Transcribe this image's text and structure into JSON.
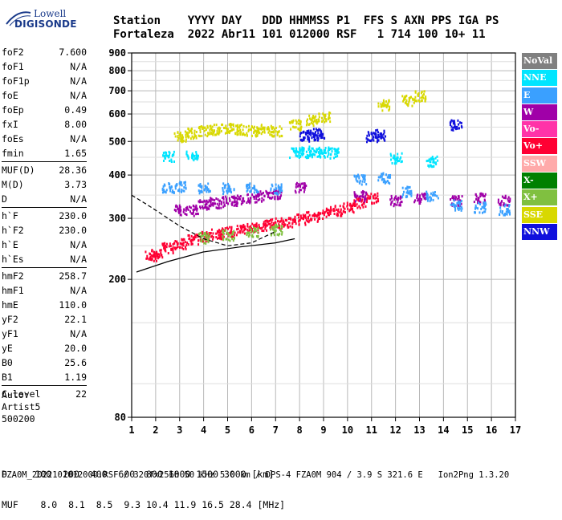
{
  "logo": {
    "line1": "Lowell",
    "line2": "DIGISONDE"
  },
  "header": {
    "labels": "Station    YYYY DAY   DDD HHMMSS P1  FFS S AXN PPS IGA PS",
    "values": "Fortaleza  2022 Abr11 101 012000 RSF   1 714 100 10+ 11"
  },
  "params": [
    {
      "name": "foF2",
      "value": "7.600"
    },
    {
      "name": "foF1",
      "value": "N/A"
    },
    {
      "name": "foF1p",
      "value": "N/A"
    },
    {
      "name": "foE",
      "value": "N/A"
    },
    {
      "name": "foEp",
      "value": "0.49"
    },
    {
      "name": "fxI",
      "value": "8.00"
    },
    {
      "name": "foEs",
      "value": "N/A"
    },
    {
      "name": "fmin",
      "value": "1.65"
    },
    {
      "name": "MUF(D)",
      "value": "28.36"
    },
    {
      "name": "M(D)",
      "value": "3.73"
    },
    {
      "name": "D",
      "value": "N/A"
    },
    {
      "name": "h`F",
      "value": "230.0"
    },
    {
      "name": "h`F2",
      "value": "230.0"
    },
    {
      "name": "h`E",
      "value": "N/A"
    },
    {
      "name": "h`Es",
      "value": "N/A"
    },
    {
      "name": "hmF2",
      "value": "258.7"
    },
    {
      "name": "hmF1",
      "value": "N/A"
    },
    {
      "name": "hmE",
      "value": "110.0"
    },
    {
      "name": "yF2",
      "value": "22.1"
    },
    {
      "name": "yF1",
      "value": "N/A"
    },
    {
      "name": "yE",
      "value": "20.0"
    },
    {
      "name": "B0",
      "value": "25.6"
    },
    {
      "name": "B1",
      "value": "1.19"
    },
    {
      "name": "C-level",
      "value": "22"
    }
  ],
  "auto": {
    "line1": "Auto:",
    "line2": "Artist5",
    "line3": "500200"
  },
  "legend": [
    {
      "label": "NoVal",
      "color": "#808080"
    },
    {
      "label": "NNE",
      "color": "#00e5ff"
    },
    {
      "label": "E",
      "color": "#3aa0ff"
    },
    {
      "label": "W",
      "color": "#a000a8"
    },
    {
      "label": "Vo-",
      "color": "#ff33a8"
    },
    {
      "label": "Vo+",
      "color": "#ff0033"
    },
    {
      "label": "SSW",
      "color": "#ffaaaa"
    },
    {
      "label": "X-",
      "color": "#008000"
    },
    {
      "label": "X+",
      "color": "#80c040"
    },
    {
      "label": "SSE",
      "color": "#d8d800"
    },
    {
      "label": "NNW",
      "color": "#1010dd"
    }
  ],
  "bottom": {
    "line1": "D     100  200  400  600  800 1000 1500 3000 [km]",
    "line2": "MUF    8.0  8.1  8.5  9.3 10.4 11.9 16.5 28.4 [MHz]"
  },
  "footer": "FZA0M_2022101012000.RSF / 320fx256h 50 kHz 5.0 km / DPS-4 FZA0M 904 / 3.9 S 321.6 E   Ion2Png 1.3.20",
  "chart_data": {
    "type": "scatter",
    "title": "",
    "xlabel": "",
    "ylabel": "",
    "xlim": [
      1,
      17
    ],
    "ylim": [
      80,
      900
    ],
    "x_scale": "linear",
    "y_scale": "log",
    "xticks": [
      1,
      2,
      3,
      4,
      5,
      6,
      7,
      8,
      9,
      10,
      11,
      12,
      13,
      14,
      15,
      16,
      17
    ],
    "yticks": [
      80,
      200,
      300,
      400,
      500,
      600,
      700,
      800,
      900
    ],
    "grid": true,
    "legend_position": "right",
    "series": [
      {
        "name": "O-trace",
        "color": "#ff0033",
        "points": [
          [
            1.8,
            235
          ],
          [
            2.0,
            238
          ],
          [
            2.5,
            248
          ],
          [
            3.0,
            255
          ],
          [
            3.5,
            262
          ],
          [
            4.0,
            268
          ],
          [
            4.5,
            272
          ],
          [
            5.0,
            276
          ],
          [
            5.5,
            280
          ],
          [
            6.0,
            284
          ],
          [
            6.5,
            288
          ],
          [
            7.0,
            292
          ],
          [
            7.5,
            295
          ],
          [
            8.0,
            300
          ],
          [
            8.5,
            305
          ],
          [
            9.0,
            312
          ],
          [
            9.5,
            318
          ],
          [
            10.0,
            325
          ],
          [
            10.5,
            335
          ],
          [
            11.0,
            345
          ]
        ]
      },
      {
        "name": "W-trace",
        "color": "#a000a8",
        "points": [
          [
            3.0,
            320
          ],
          [
            3.5,
            318
          ],
          [
            4.0,
            330
          ],
          [
            4.5,
            335
          ],
          [
            5.0,
            338
          ],
          [
            5.5,
            340
          ],
          [
            6.0,
            345
          ],
          [
            6.5,
            350
          ],
          [
            7.0,
            352
          ],
          [
            8.0,
            370
          ],
          [
            10.5,
            350
          ],
          [
            12.0,
            340
          ],
          [
            13.0,
            345
          ],
          [
            14.5,
            340
          ],
          [
            15.5,
            345
          ],
          [
            16.5,
            340
          ]
        ]
      },
      {
        "name": "E-trace",
        "color": "#3aa0ff",
        "points": [
          [
            2.5,
            370
          ],
          [
            3.0,
            372
          ],
          [
            4.0,
            370
          ],
          [
            5.0,
            368
          ],
          [
            6.0,
            368
          ],
          [
            7.0,
            366
          ],
          [
            10.5,
            390
          ],
          [
            11.5,
            395
          ],
          [
            12.5,
            360
          ],
          [
            13.5,
            350
          ],
          [
            14.5,
            330
          ],
          [
            15.5,
            325
          ],
          [
            16.5,
            320
          ]
        ]
      },
      {
        "name": "SSE-trace",
        "color": "#d8d800",
        "points": [
          [
            3.0,
            520
          ],
          [
            3.5,
            530
          ],
          [
            4.0,
            540
          ],
          [
            4.5,
            545
          ],
          [
            5.0,
            550
          ],
          [
            5.5,
            545
          ],
          [
            6.0,
            540
          ],
          [
            6.5,
            545
          ],
          [
            7.0,
            540
          ],
          [
            7.8,
            560
          ],
          [
            8.5,
            580
          ],
          [
            9.0,
            590
          ],
          [
            11.5,
            640
          ],
          [
            12.5,
            660
          ],
          [
            13.0,
            680
          ]
        ]
      },
      {
        "name": "NNW-trace",
        "color": "#1010dd",
        "points": [
          [
            8.2,
            520
          ],
          [
            8.5,
            525
          ],
          [
            8.8,
            530
          ],
          [
            11.0,
            520
          ],
          [
            11.3,
            525
          ],
          [
            14.5,
            560
          ]
        ]
      },
      {
        "name": "NNE-trace",
        "color": "#00e5ff",
        "points": [
          [
            7.8,
            465
          ],
          [
            8.2,
            468
          ],
          [
            8.6,
            470
          ],
          [
            9.0,
            468
          ],
          [
            9.4,
            466
          ],
          [
            2.5,
            455
          ],
          [
            3.5,
            455
          ],
          [
            12.0,
            450
          ],
          [
            13.5,
            440
          ]
        ]
      },
      {
        "name": "X+-trace",
        "color": "#80c040",
        "points": [
          [
            4.0,
            265
          ],
          [
            5.0,
            270
          ],
          [
            6.0,
            275
          ],
          [
            7.0,
            280
          ]
        ]
      }
    ],
    "annotations": [
      {
        "type": "curve",
        "style": "solid",
        "points": [
          [
            1.2,
            210
          ],
          [
            2.5,
            225
          ],
          [
            4.0,
            240
          ],
          [
            5.5,
            248
          ],
          [
            7.0,
            255
          ],
          [
            7.8,
            262
          ]
        ]
      },
      {
        "type": "curve",
        "style": "dashed",
        "points": [
          [
            1.0,
            350
          ],
          [
            1.6,
            330
          ],
          [
            2.2,
            310
          ],
          [
            3.0,
            285
          ],
          [
            4.0,
            262
          ],
          [
            5.0,
            250
          ],
          [
            6.0,
            255
          ],
          [
            7.0,
            275
          ]
        ]
      }
    ]
  }
}
